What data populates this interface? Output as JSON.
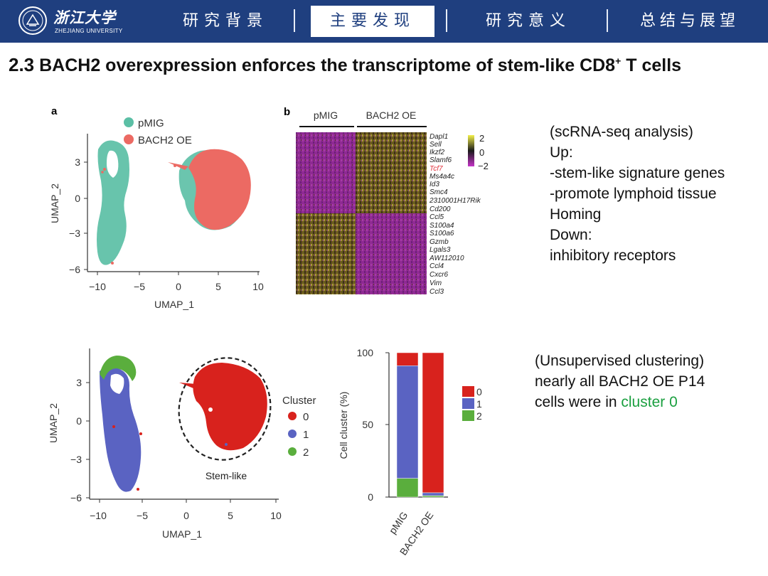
{
  "header": {
    "logo": {
      "cn": "浙江大学",
      "en": "ZHEJIANG UNIVERSITY"
    },
    "nav": [
      {
        "label": "研究背景",
        "active": false
      },
      {
        "label": "主要发现",
        "active": true
      },
      {
        "label": "研究意义",
        "active": false
      },
      {
        "label": "总结与展望",
        "active": false
      }
    ]
  },
  "slide": {
    "title_num": "2.3",
    "title_text": "BACH2 overexpression enforces the transcriptome of stem-like CD8",
    "title_sup": "+",
    "title_tail": "T cells"
  },
  "colors": {
    "teal": "#5bbfa5",
    "salmon": "#ec6a63",
    "blue": "#5a63c2",
    "red": "#d8221d",
    "green": "#5aae3d",
    "navy": "#1f3f7f"
  },
  "panel_a": {
    "label": "a",
    "legend": [
      "pMIG",
      "BACH2 OE"
    ],
    "xlabel": "UMAP_1",
    "ylabel": "UMAP_2",
    "xticks": [
      "−10",
      "−5",
      "0",
      "5",
      "10"
    ],
    "yticks": [
      "3",
      "0",
      "−3",
      "−6"
    ]
  },
  "panel_b": {
    "label": "b",
    "groups": [
      "pMIG",
      "BACH2 OE"
    ],
    "genes": [
      "Dapl1",
      "Sell",
      "Ikzf2",
      "Slamf6",
      "Tcf7",
      "Ms4a4c",
      "Id3",
      "Smc4",
      "2310001H17Rik",
      "Cd200",
      "Ccl5",
      "S100a4",
      "S100a6",
      "Gzmb",
      "Lgals3",
      "AW112010",
      "Ccl4",
      "Cxcr6",
      "Vim",
      "Ccl3"
    ],
    "highlight_gene": "Tcf7",
    "scale": [
      "2",
      "0",
      "−2"
    ]
  },
  "panel_c": {
    "legend_title": "Cluster",
    "clusters": [
      "0",
      "1",
      "2"
    ],
    "annotation": "Stem-like",
    "xlabel": "UMAP_1",
    "ylabel": "UMAP_2",
    "xticks": [
      "−10",
      "−5",
      "0",
      "5",
      "10"
    ],
    "yticks": [
      "3",
      "0",
      "−3",
      "−6"
    ]
  },
  "chart_data": {
    "type": "bar",
    "stacked": true,
    "categories": [
      "pMIG",
      "BACH2 OE"
    ],
    "series": [
      {
        "name": "0",
        "values": [
          9,
          97
        ]
      },
      {
        "name": "1",
        "values": [
          78,
          2
        ]
      },
      {
        "name": "2",
        "values": [
          13,
          1
        ]
      }
    ],
    "ylabel": "Cell cluster (%)",
    "yticks": [
      "0",
      "50",
      "100"
    ],
    "ylim": [
      0,
      100
    ]
  },
  "notes": {
    "top": [
      "(scRNA-seq analysis)",
      "Up:",
      "-stem-like signature genes",
      "-promote lymphoid tissue",
      "Homing",
      "Down:",
      "inhibitory receptors"
    ],
    "bottom_lines": [
      "(Unsupervised clustering)",
      "nearly all BACH2 OE P14"
    ],
    "bottom_last": "cells were in",
    "bottom_highlight": "cluster 0"
  }
}
